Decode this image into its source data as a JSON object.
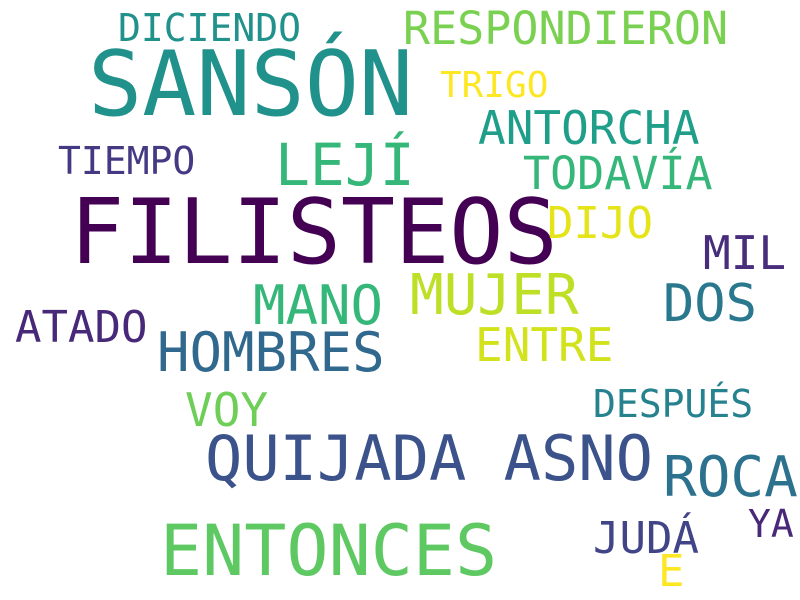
{
  "words": [
    {
      "text": "SANSÓN",
      "color": "#21918c"
    },
    {
      "text": "FILISTEOS",
      "color": "#440154"
    },
    {
      "text": "QUIJADA ASNO",
      "color": "#3b528b"
    },
    {
      "text": "ENTONCES",
      "color": "#5ec962"
    },
    {
      "text": "RESPONDIERON",
      "color": "#7ad151"
    },
    {
      "text": "DICIENDO",
      "color": "#21918c"
    },
    {
      "text": "TRIGO",
      "color": "#fde725"
    },
    {
      "text": "ANTORCHA",
      "color": "#1f9e89"
    },
    {
      "text": "TIEMPO",
      "color": "#443983"
    },
    {
      "text": "LEJÍ",
      "color": "#35b779"
    },
    {
      "text": "TODAVÍA",
      "color": "#35b779"
    },
    {
      "text": "DIJO",
      "color": "#e5e419"
    },
    {
      "text": "MIL",
      "color": "#472d7b"
    },
    {
      "text": "MUJER",
      "color": "#bddf26"
    },
    {
      "text": "DOS",
      "color": "#2a788e"
    },
    {
      "text": "MANO",
      "color": "#35b779"
    },
    {
      "text": "ATADO",
      "color": "#482878"
    },
    {
      "text": "HOMBRES",
      "color": "#31688e"
    },
    {
      "text": "ENTRE",
      "color": "#d2e21b"
    },
    {
      "text": "VOY",
      "color": "#6ece58"
    },
    {
      "text": "DESPUÉS",
      "color": "#26828e"
    },
    {
      "text": "ROCA",
      "color": "#2c728e"
    },
    {
      "text": "JUDÁ",
      "color": "#414487"
    },
    {
      "text": "YA",
      "color": "#482878"
    },
    {
      "text": "E",
      "color": "#fde725"
    }
  ]
}
